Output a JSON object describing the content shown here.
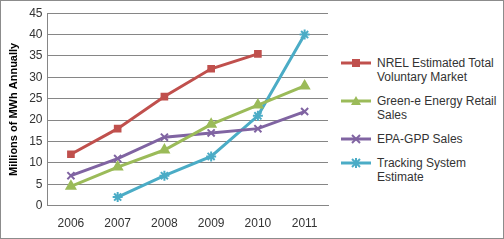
{
  "chart_data": {
    "type": "line",
    "y_label": "Millions of MWh Annually",
    "categories": [
      "2006",
      "2007",
      "2008",
      "2009",
      "2010",
      "2011"
    ],
    "series": [
      {
        "name": "NREL Estimated Total Voluntary Market",
        "color": "#c0504d",
        "marker": "square",
        "values": [
          12,
          18,
          25.5,
          32,
          35.5,
          null
        ]
      },
      {
        "name": "Green-e Energy Retail Sales",
        "color": "#9bbb59",
        "marker": "triangle",
        "values": [
          4.5,
          9,
          13,
          19,
          23.5,
          28
        ]
      },
      {
        "name": "EPA-GPP Sales",
        "color": "#8064a2",
        "marker": "cross",
        "values": [
          7,
          11,
          16,
          17,
          18,
          22
        ]
      },
      {
        "name": "Tracking System Estimate",
        "color": "#4bacc6",
        "marker": "star",
        "values": [
          null,
          2,
          7,
          11.5,
          21,
          40
        ]
      }
    ],
    "ylim": [
      0,
      45
    ],
    "yticks": [
      0,
      5,
      10,
      15,
      20,
      25,
      30,
      35,
      40,
      45
    ],
    "grid": true,
    "legend": "right"
  }
}
